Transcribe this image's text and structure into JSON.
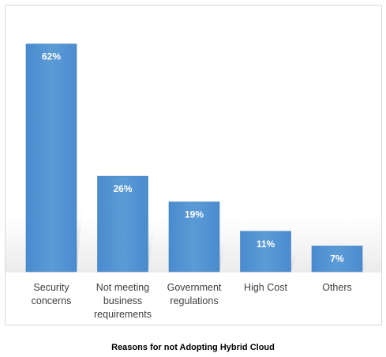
{
  "chart_data": {
    "type": "bar",
    "title": "",
    "categories": [
      [
        "Security",
        "concerns"
      ],
      [
        "Not meeting",
        "business",
        "requirements"
      ],
      [
        "Government",
        "regulations"
      ],
      [
        "High Cost"
      ],
      [
        "Others"
      ]
    ],
    "values": [
      62,
      26,
      19,
      11,
      7
    ],
    "value_labels": [
      "62%",
      "26%",
      "19%",
      "11%",
      "7%"
    ],
    "unit": "%",
    "ylim": [
      0,
      70
    ],
    "grid": false,
    "legend": "none",
    "colors": {
      "bar": "#5b9bd5",
      "bar_edge": "#3f7fc0",
      "label": "#ffffff",
      "axis_text": "#404040"
    }
  },
  "caption": "Reasons for not Adopting Hybrid Cloud"
}
